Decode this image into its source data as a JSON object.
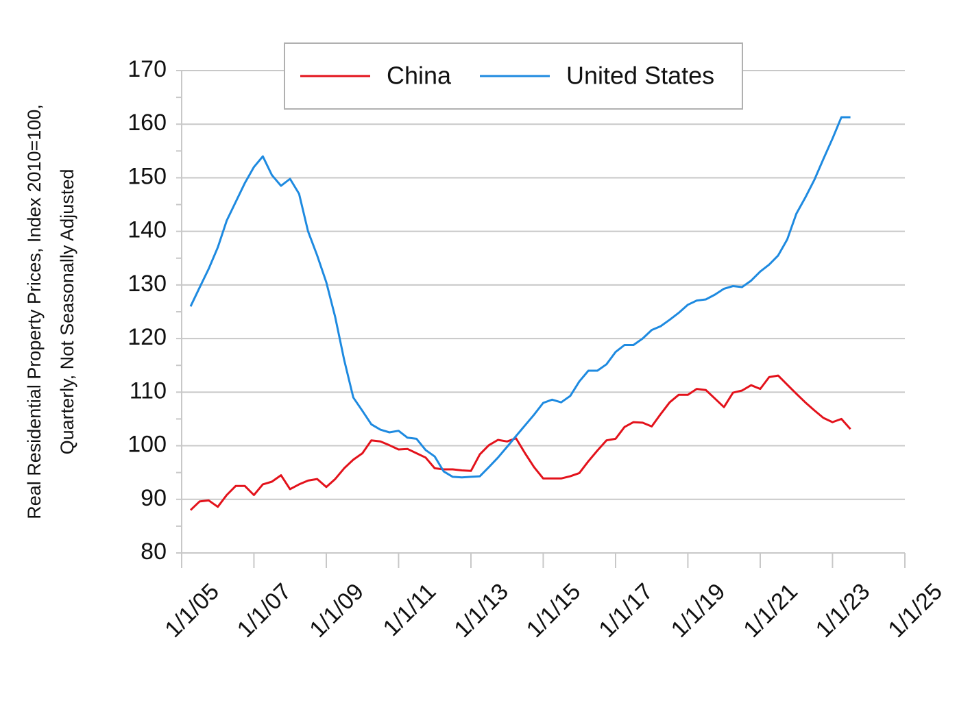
{
  "chart_data": {
    "type": "line",
    "ylabel": [
      "Real Residential Property Prices, Index 2010=100,",
      "Quarterly, Not Seasonally Adjusted"
    ],
    "x": [
      "4/1/05",
      "7/1/05",
      "10/1/05",
      "1/1/06",
      "4/1/06",
      "7/1/06",
      "10/1/06",
      "1/1/07",
      "4/1/07",
      "7/1/07",
      "10/1/07",
      "1/1/08",
      "4/1/08",
      "7/1/08",
      "10/1/08",
      "1/1/09",
      "4/1/09",
      "7/1/09",
      "10/1/09",
      "1/1/10",
      "4/1/10",
      "7/1/10",
      "10/1/10",
      "1/1/11",
      "4/1/11",
      "7/1/11",
      "10/1/11",
      "1/1/12",
      "4/1/12",
      "7/1/12",
      "10/1/12",
      "1/1/13",
      "4/1/13",
      "7/1/13",
      "10/1/13",
      "1/1/14",
      "4/1/14",
      "7/1/14",
      "10/1/14",
      "1/1/15",
      "4/1/15",
      "7/1/15",
      "10/1/15",
      "1/1/16",
      "4/1/16",
      "7/1/16",
      "10/1/16",
      "1/1/17",
      "4/1/17",
      "7/1/17",
      "10/1/17",
      "1/1/18",
      "4/1/18",
      "7/1/18",
      "10/1/18",
      "1/1/19",
      "4/1/19",
      "7/1/19",
      "10/1/19",
      "1/1/20",
      "4/1/20",
      "7/1/20",
      "10/1/20",
      "1/1/21",
      "4/1/21",
      "7/1/21",
      "10/1/21",
      "1/1/22",
      "4/1/22",
      "7/1/22",
      "10/1/22",
      "1/1/23",
      "4/1/23",
      "7/1/23"
    ],
    "series": [
      {
        "name": "China",
        "color": "#e3121b",
        "values": [
          88,
          89.6,
          89.8,
          88.6,
          90.8,
          92.5,
          92.5,
          90.8,
          92.8,
          93.3,
          94.5,
          91.9,
          92.8,
          93.5,
          93.8,
          92.3,
          93.8,
          95.8,
          97.4,
          98.6,
          101,
          100.8,
          100.1,
          99.3,
          99.4,
          98.6,
          97.8,
          95.8,
          95.6,
          95.6,
          95.4,
          95.3,
          98.4,
          100.1,
          101.1,
          100.8,
          101.4,
          98.6,
          96,
          93.9,
          93.9,
          93.9,
          94.3,
          94.9,
          97.1,
          99.1,
          101,
          101.3,
          103.5,
          104.4,
          104.3,
          103.6,
          105.9,
          108.1,
          109.5,
          109.5,
          110.6,
          110.4,
          108.8,
          107.2,
          109.9,
          110.3,
          111.3,
          110.6,
          112.8,
          113.1,
          111.4,
          109.7,
          108.1,
          106.6,
          105.2,
          104.4,
          105,
          103.1
        ]
      },
      {
        "name": "United States",
        "color": "#1e8ae0",
        "values": [
          126,
          129.5,
          133,
          137,
          142,
          145.5,
          149,
          152,
          154,
          150.5,
          148.5,
          149.8,
          147,
          140,
          135.5,
          130.5,
          124,
          116,
          109,
          106.5,
          104,
          103,
          102.5,
          102.8,
          101.5,
          101.3,
          99.2,
          98,
          95.2,
          94.2,
          94.1,
          94.2,
          94.3,
          96,
          97.8,
          99.8,
          101.8,
          103.8,
          105.8,
          108,
          108.6,
          108.1,
          109.3,
          112,
          114,
          114,
          115.2,
          117.5,
          118.8,
          118.8,
          120,
          121.6,
          122.3,
          123.5,
          124.8,
          126.3,
          127.1,
          127.3,
          128.2,
          129.3,
          129.8,
          129.6,
          130.8,
          132.5,
          133.8,
          135.5,
          138.5,
          143.3,
          146.3,
          149.6,
          153.5,
          157.3,
          161.3,
          161.3
        ]
      }
    ],
    "xlim": [
      "1/1/05",
      "1/1/25"
    ],
    "xticks": [
      "1/1/05",
      "1/1/07",
      "1/1/09",
      "1/1/11",
      "1/1/13",
      "1/1/15",
      "1/1/17",
      "1/1/19",
      "1/1/21",
      "1/1/23",
      "1/1/25"
    ],
    "ylim": [
      80,
      170
    ],
    "yticks": [
      80,
      90,
      100,
      110,
      120,
      130,
      140,
      150,
      160,
      170
    ],
    "grid": true,
    "legend": "top"
  }
}
